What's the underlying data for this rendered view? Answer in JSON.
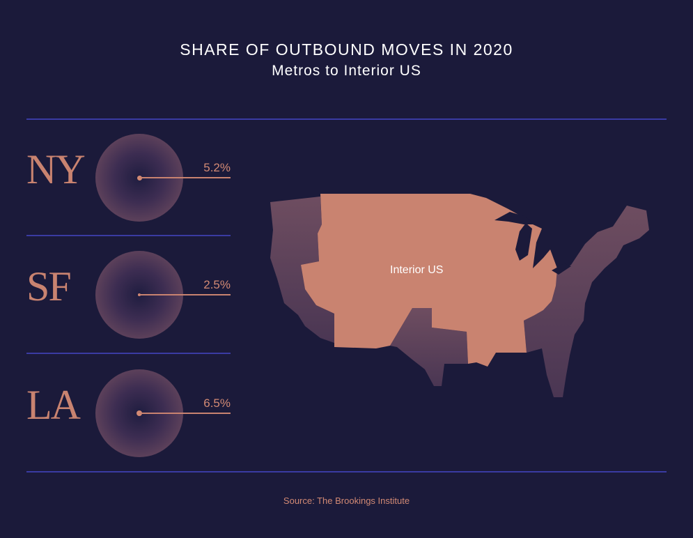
{
  "header": {
    "title": "SHARE OF OUTBOUND MOVES IN 2020",
    "subtitle": "Metros to Interior US"
  },
  "map": {
    "label": "Interior US",
    "interior_color": "#c98370"
  },
  "source": "Source: The Brookings Institute",
  "colors": {
    "background": "#1b1a3a",
    "accent": "#c98370",
    "divider": "#3a3ba3"
  },
  "chart_data": {
    "type": "bar",
    "title": "SHARE OF OUTBOUND MOVES IN 2020",
    "subtitle": "Metros to Interior US",
    "categories": [
      "NY",
      "SF",
      "LA"
    ],
    "values": [
      5.2,
      2.5,
      6.5
    ],
    "value_labels": [
      "5.2%",
      "2.5%",
      "6.5%"
    ],
    "unit": "%"
  }
}
